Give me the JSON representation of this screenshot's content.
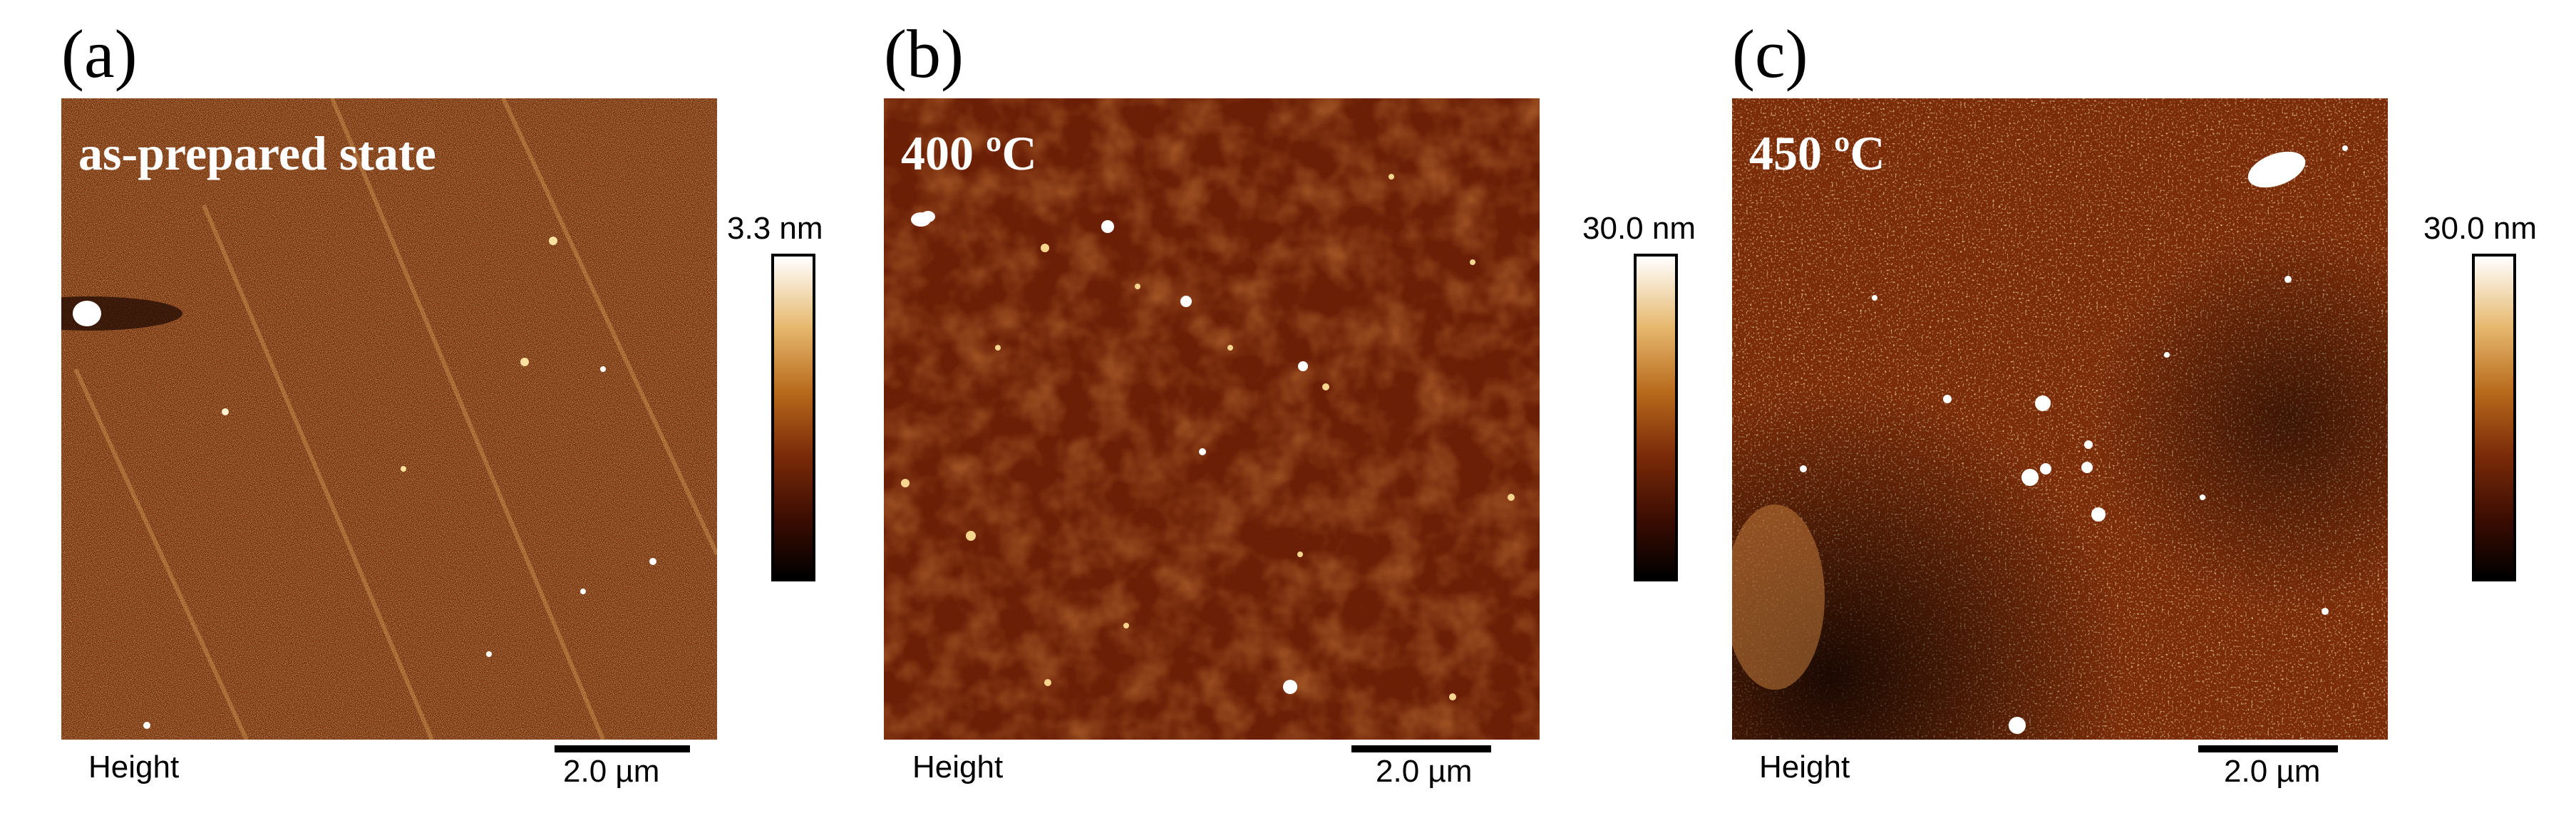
{
  "panels": [
    {
      "letter": "(a)",
      "state": "as-prepared state",
      "colorbar_max": "3.3 nm",
      "channel": "Height",
      "scale": "2.0 µm",
      "palette": {
        "base": "#7a2f0b",
        "light": "#f0c470",
        "dark": "#1a0500"
      }
    },
    {
      "letter": "(b)",
      "state": "400 ºC",
      "colorbar_max": "30.0 nm",
      "channel": "Height",
      "scale": "2.0 µm",
      "palette": {
        "base": "#6a1e06",
        "light": "#f6d68e",
        "dark": "#2a0802"
      }
    },
    {
      "letter": "(c)",
      "state": "450 ºC",
      "colorbar_max": "30.0 nm",
      "channel": "Height",
      "scale": "2.0 µm",
      "palette": {
        "base": "#7a2c08",
        "light": "#e8b060",
        "dark": "#140300"
      }
    }
  ]
}
